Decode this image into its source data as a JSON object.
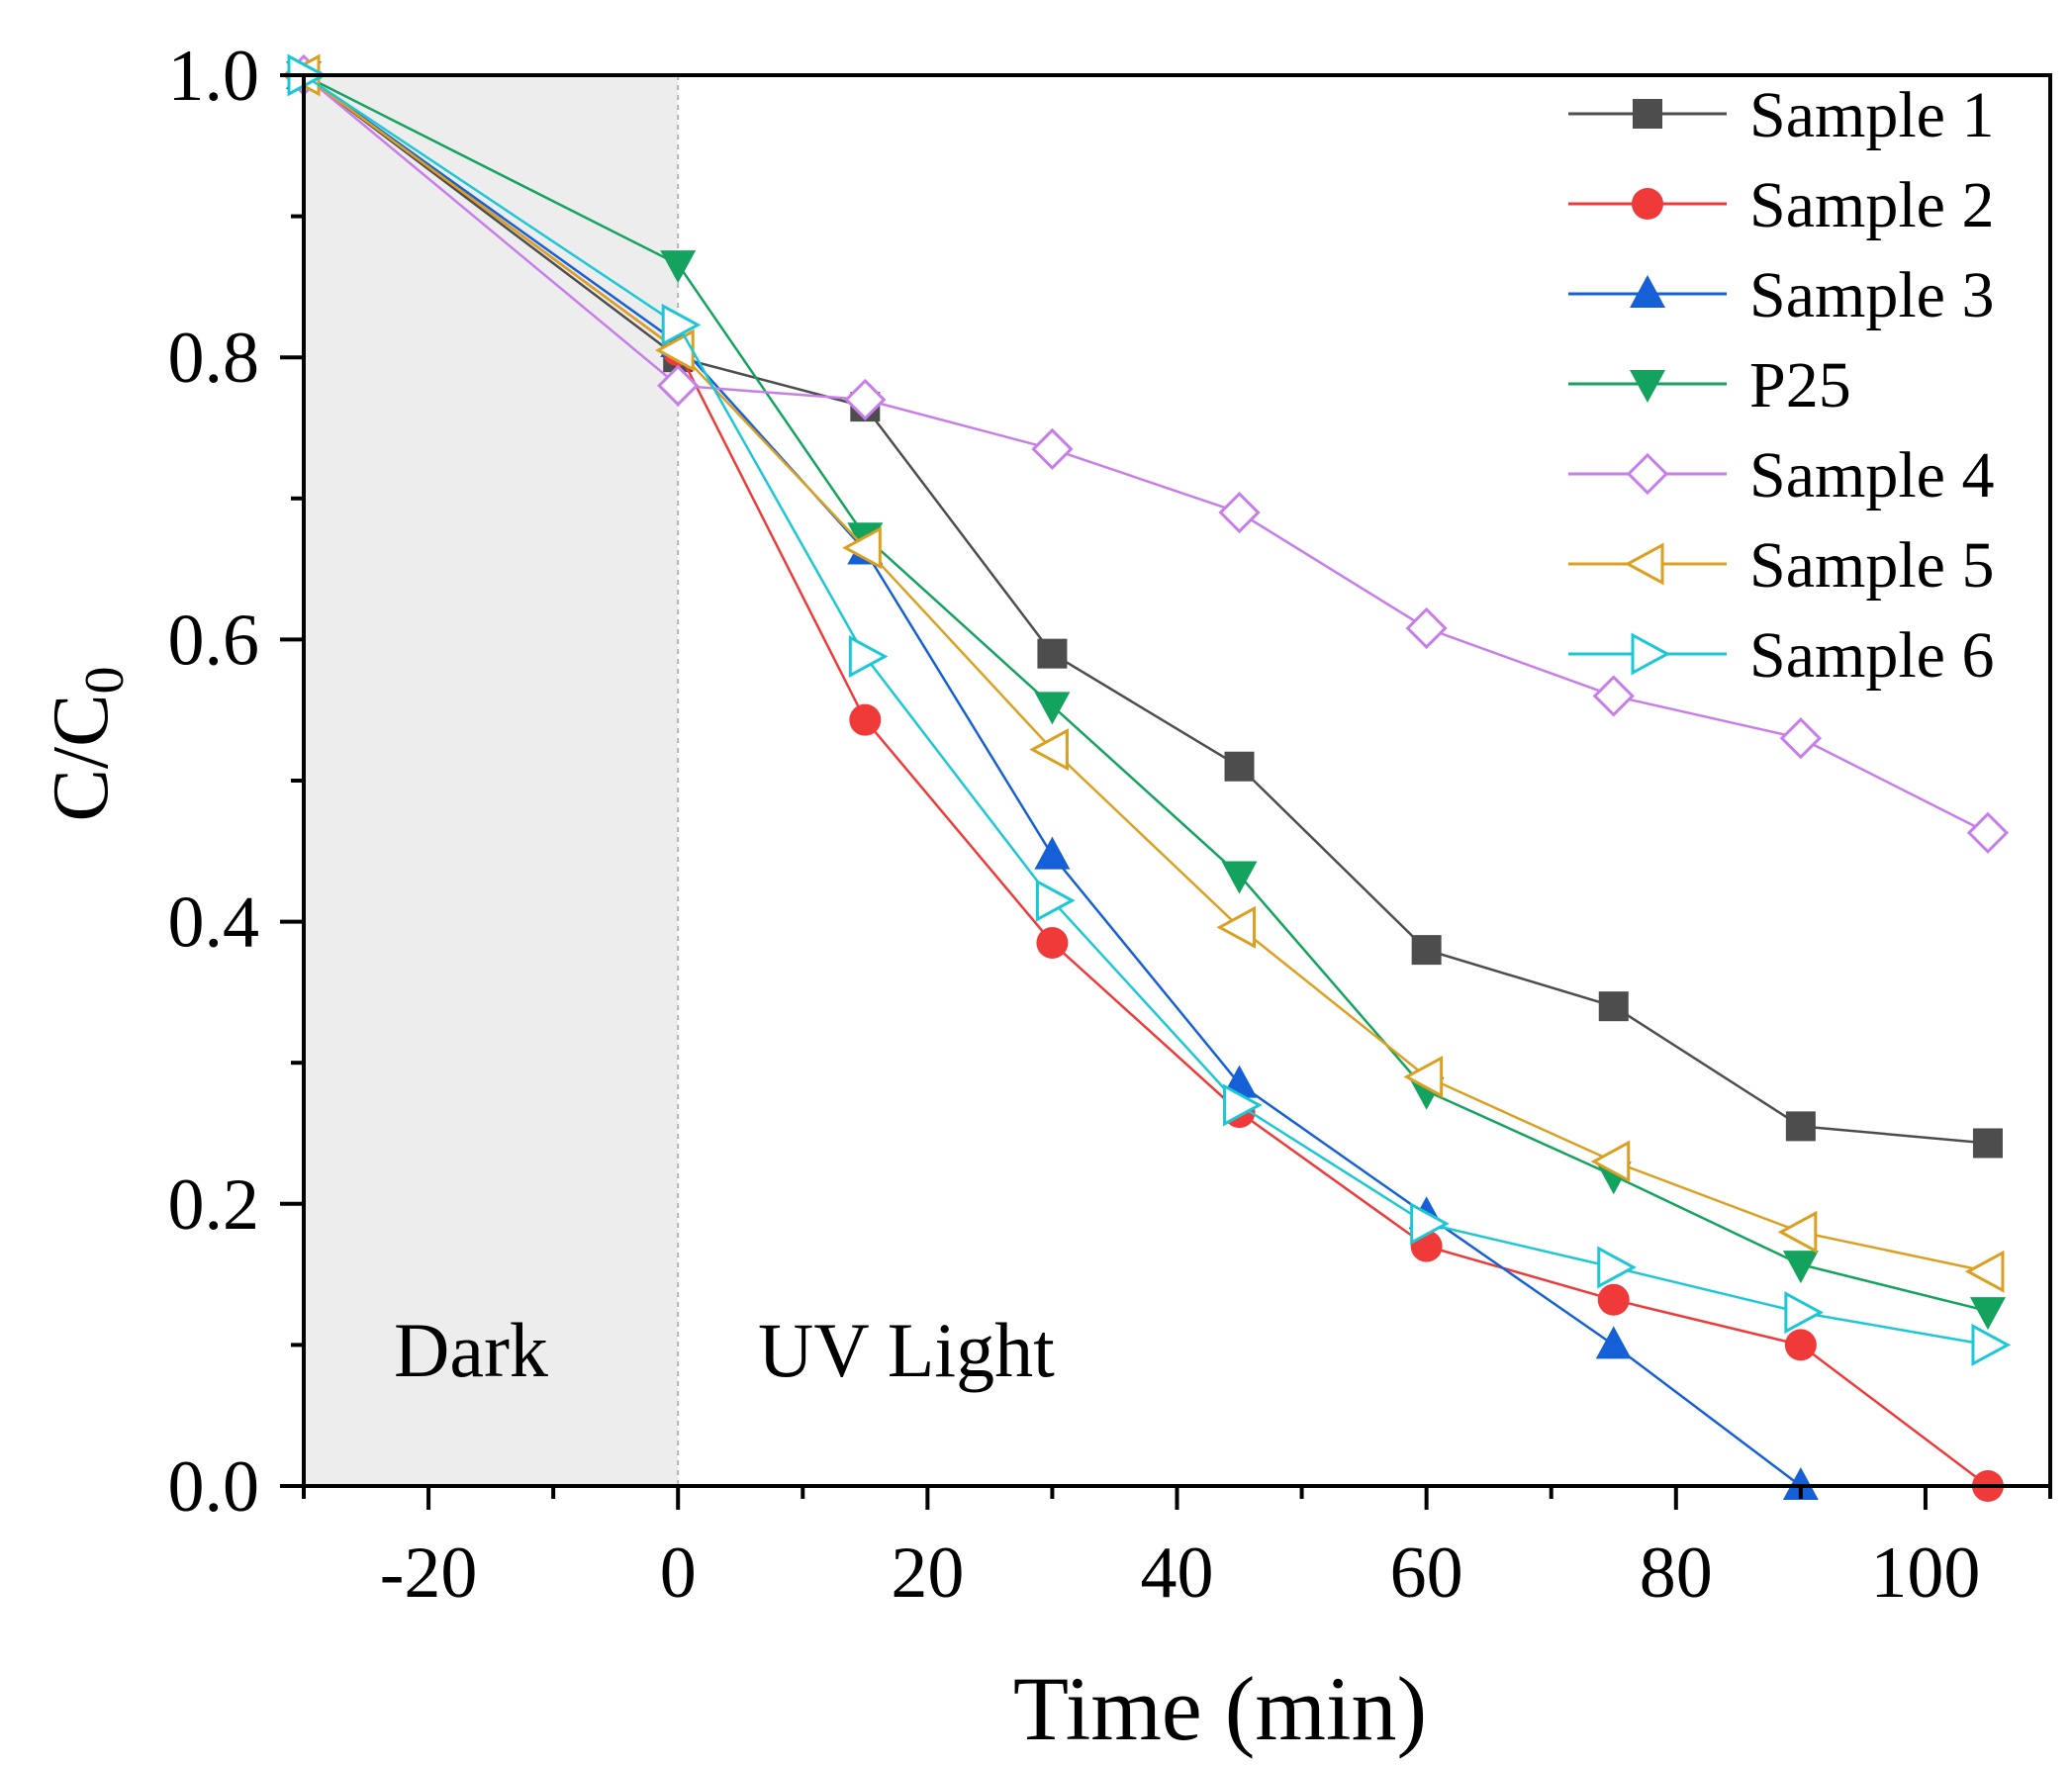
{
  "chart_data": {
    "type": "line",
    "xlabel": "Time (min)",
    "ylabel": "C/C0",
    "ylabel_main": "C/C",
    "ylabel_sub": "0",
    "xlim": [
      -30,
      110
    ],
    "ylim": [
      0.0,
      1.0
    ],
    "xticks": [
      -20,
      0,
      20,
      40,
      60,
      80,
      100
    ],
    "xtick_labels": [
      "-20",
      "0",
      "20",
      "40",
      "60",
      "80",
      "100"
    ],
    "yticks": [
      0.0,
      0.2,
      0.4,
      0.6,
      0.8,
      1.0
    ],
    "ytick_labels": [
      "0.0",
      "0.2",
      "0.4",
      "0.6",
      "0.8",
      "1.0"
    ],
    "x": [
      -30,
      0,
      15,
      30,
      45,
      60,
      75,
      90,
      105
    ],
    "regions": [
      {
        "label": "Dark",
        "from": -30,
        "to": 0,
        "color": "#ededed"
      },
      {
        "label": "UV Light",
        "from": 0,
        "to": 110,
        "color": "#ffffff"
      }
    ],
    "legend_position": "top-right",
    "series": [
      {
        "name": "Sample 1",
        "color": "#4d4d4d",
        "marker": "square",
        "values": [
          1.0,
          0.8,
          0.765,
          0.59,
          0.51,
          0.38,
          0.34,
          0.255,
          0.243
        ]
      },
      {
        "name": "Sample 2",
        "color": "#f03a3a",
        "marker": "circle",
        "values": [
          1.0,
          0.805,
          0.543,
          0.385,
          0.265,
          0.17,
          0.132,
          0.1,
          0.0
        ]
      },
      {
        "name": "Sample 3",
        "color": "#1560d6",
        "marker": "triangle-up",
        "values": [
          1.0,
          0.81,
          0.663,
          0.447,
          0.285,
          0.192,
          0.1,
          0.0,
          null
        ]
      },
      {
        "name": "P25",
        "color": "#14a35f",
        "marker": "triangle-down",
        "values": [
          1.0,
          0.866,
          0.673,
          0.553,
          0.433,
          0.28,
          0.22,
          0.157,
          0.124
        ]
      },
      {
        "name": "Sample 4",
        "color": "#c77dea",
        "marker": "diamond-open",
        "values": [
          1.0,
          0.78,
          0.77,
          0.735,
          0.69,
          0.608,
          0.56,
          0.53,
          0.463
        ]
      },
      {
        "name": "Sample 5",
        "color": "#dba022",
        "marker": "triangle-left-open",
        "values": [
          1.0,
          0.805,
          0.665,
          0.522,
          0.396,
          0.29,
          0.23,
          0.18,
          0.152
        ]
      },
      {
        "name": "Sample 6",
        "color": "#1cc7d6",
        "marker": "triangle-right-open",
        "values": [
          1.0,
          0.823,
          0.588,
          0.415,
          0.27,
          0.186,
          0.155,
          0.123,
          0.1
        ]
      }
    ]
  }
}
